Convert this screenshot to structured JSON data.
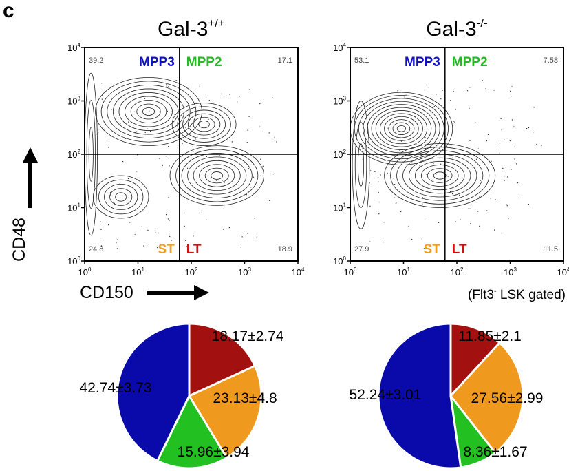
{
  "panel_letter": "c",
  "flow_axis": {
    "x_label": "CD150",
    "y_label": "CD48",
    "ticks": [
      {
        "base": "10",
        "exp": "0"
      },
      {
        "base": "10",
        "exp": "1"
      },
      {
        "base": "10",
        "exp": "2"
      },
      {
        "base": "10",
        "exp": "3"
      },
      {
        "base": "10",
        "exp": "4"
      }
    ]
  },
  "gating_note": {
    "prefix": "(Flt3",
    "sup": "-",
    "suffix": " LSK gated)"
  },
  "colors": {
    "MPP3": "#1010c8",
    "MPP2": "#22bb22",
    "ST": "#f0a020",
    "LT": "#cc1111",
    "pie_MPP3": "#0a0aaa",
    "pie_MPP2": "#22c020",
    "pie_ST": "#ef9a1e",
    "pie_LT": "#a31010"
  },
  "quadrant_names": {
    "MPP3": "MPP3",
    "MPP2": "MPP2",
    "ST": "ST",
    "LT": "LT"
  },
  "chart_data": [
    {
      "type": "scatter",
      "title": {
        "base": "Gal-3",
        "sup": "+/+"
      },
      "xlabel": "CD150",
      "ylabel": "CD48",
      "x_scale": "log",
      "y_scale": "log",
      "xlim": [
        1,
        10000
      ],
      "ylim": [
        1,
        10000
      ],
      "x_gate": 60,
      "y_gate": 100,
      "quadrants": {
        "top_left": {
          "name": "MPP3",
          "percent": "39.2"
        },
        "top_right": {
          "name": "MPP2",
          "percent": "17.1"
        },
        "bottom_left": {
          "name": "ST",
          "percent": "24.8"
        },
        "bottom_right": {
          "name": "LT",
          "percent": "18.9"
        }
      }
    },
    {
      "type": "scatter",
      "title": {
        "base": "Gal-3",
        "sup": "-/-"
      },
      "xlabel": "CD150",
      "ylabel": "CD48",
      "x_scale": "log",
      "y_scale": "log",
      "xlim": [
        1,
        10000
      ],
      "ylim": [
        1,
        10000
      ],
      "x_gate": 60,
      "y_gate": 100,
      "quadrants": {
        "top_left": {
          "name": "MPP3",
          "percent": "53.1"
        },
        "top_right": {
          "name": "MPP2",
          "percent": "7.58"
        },
        "bottom_left": {
          "name": "ST",
          "percent": "27.9"
        },
        "bottom_right": {
          "name": "LT",
          "percent": "11.5"
        }
      }
    },
    {
      "type": "pie",
      "group": "Gal-3+/+",
      "slices": [
        {
          "name": "LT",
          "value": 18.17,
          "label": "18.17±2.74"
        },
        {
          "name": "ST",
          "value": 23.13,
          "label": "23.13±4.8"
        },
        {
          "name": "MPP2",
          "value": 15.96,
          "label": "15.96±3.94"
        },
        {
          "name": "MPP3",
          "value": 42.74,
          "label": "42.74±3.73"
        }
      ]
    },
    {
      "type": "pie",
      "group": "Gal-3-/-",
      "slices": [
        {
          "name": "LT",
          "value": 11.85,
          "label": "11.85±2.1"
        },
        {
          "name": "ST",
          "value": 27.56,
          "label": "27.56±2.99"
        },
        {
          "name": "MPP2",
          "value": 8.36,
          "label": "8.36±1.67"
        },
        {
          "name": "MPP3",
          "value": 52.24,
          "label": "52.24±3.01"
        }
      ]
    }
  ]
}
